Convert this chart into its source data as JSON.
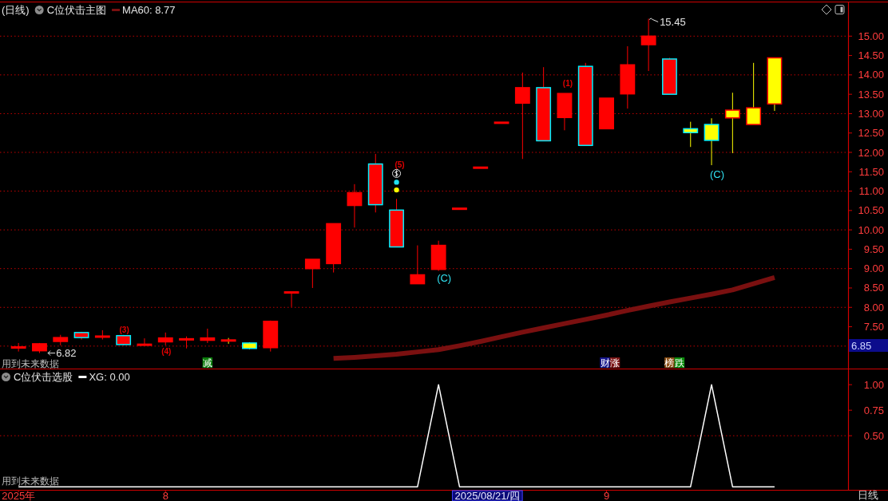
{
  "chart_data": [
    {
      "type": "candlestick",
      "subtitle": "(日线)",
      "title": "C位伏击主图",
      "categories": [
        null,
        null,
        null,
        null,
        null,
        null,
        null,
        null,
        null,
        null,
        null,
        null,
        null,
        null,
        null,
        null,
        null,
        null,
        null,
        null,
        null,
        null,
        null,
        null,
        null,
        null,
        null,
        null,
        null,
        null,
        null,
        null,
        null,
        null,
        null,
        null,
        null
      ],
      "ylim": [
        6.42,
        15.83
      ],
      "yticks": [
        {
          "value": 7,
          "label": null
        },
        {
          "value": 7.5,
          "label": "7.50"
        },
        {
          "value": 8,
          "label": "8.00"
        },
        {
          "value": 8.5,
          "label": "8.50"
        },
        {
          "value": 9,
          "label": "9.00"
        },
        {
          "value": 9.5,
          "label": "9.50"
        },
        {
          "value": 10,
          "label": "10.00"
        },
        {
          "value": 10.5,
          "label": "10.50"
        },
        {
          "value": 11,
          "label": "11.00"
        },
        {
          "value": 11.5,
          "label": "11.50"
        },
        {
          "value": 12,
          "label": "12.00"
        },
        {
          "value": 12.5,
          "label": "12.50"
        },
        {
          "value": 13,
          "label": "13.00"
        },
        {
          "value": 13.5,
          "label": "13.50"
        },
        {
          "value": 14,
          "label": "14.00"
        },
        {
          "value": 14.5,
          "label": "14.50"
        },
        {
          "value": 15,
          "label": "15.00"
        }
      ],
      "grid": "y",
      "tick_labels": "y",
      "legend": "top left",
      "ohlc": [
        [
          6.97,
          7.08,
          6.86,
          6.98
        ],
        [
          6.88,
          7.08,
          6.82,
          7.06
        ],
        [
          7.12,
          7.29,
          7.02,
          7.22
        ],
        [
          7.35,
          7.37,
          7.17,
          7.22
        ],
        [
          7.23,
          7.41,
          7.17,
          7.26
        ],
        [
          7.27,
          7.29,
          7.02,
          7.04
        ],
        [
          7.03,
          7.2,
          7.02,
          7.05
        ],
        [
          7.11,
          7.35,
          7.02,
          7.21
        ],
        [
          7.17,
          7.25,
          6.94,
          7.19
        ],
        [
          7.15,
          7.45,
          7.08,
          7.21
        ],
        [
          7.13,
          7.21,
          7.06,
          7.16
        ],
        [
          7.08,
          7.1,
          6.92,
          6.94
        ],
        [
          6.96,
          7.66,
          6.86,
          7.64
        ],
        [
          8.4,
          8.4,
          8.01,
          8.4
        ],
        [
          9.0,
          9.24,
          8.5,
          9.24
        ],
        [
          9.13,
          10.16,
          8.9,
          10.16
        ],
        [
          10.63,
          11.18,
          10.06,
          10.96
        ],
        [
          11.7,
          11.96,
          10.45,
          10.65
        ],
        [
          10.51,
          10.8,
          9.56,
          9.56
        ],
        [
          8.61,
          9.6,
          8.61,
          8.84
        ],
        [
          8.98,
          9.72,
          8.94,
          9.6
        ],
        [
          10.56,
          10.56,
          10.56,
          10.56
        ],
        [
          11.62,
          11.62,
          11.62,
          11.62
        ],
        [
          12.78,
          12.78,
          12.78,
          12.78
        ],
        [
          13.27,
          14.06,
          11.83,
          13.67
        ],
        [
          13.67,
          14.2,
          12.3,
          12.3
        ],
        [
          12.9,
          13.52,
          12.57,
          13.52
        ],
        [
          14.22,
          14.31,
          12.18,
          12.18
        ],
        [
          12.61,
          13.4,
          12.61,
          13.4
        ],
        [
          13.51,
          14.74,
          13.13,
          14.26
        ],
        [
          14.78,
          15.45,
          14.1,
          15.0
        ],
        [
          14.41,
          14.44,
          13.5,
          13.5
        ],
        [
          12.61,
          12.79,
          12.14,
          12.51
        ],
        [
          12.72,
          12.88,
          11.67,
          12.31
        ],
        [
          12.89,
          13.54,
          11.98,
          13.09
        ],
        [
          12.72,
          14.31,
          12.72,
          13.15
        ],
        [
          13.25,
          14.44,
          13.07,
          14.44
        ]
      ],
      "colors": [
        "#ff0000",
        "#ff0000",
        "#ff0000",
        "#ff0000",
        "#ff0000",
        "#ff0000",
        "#ff0000",
        "#ff0000",
        "#ff0000",
        "#ff0000",
        "#ffff00",
        "#ffff00",
        "#ff0000",
        "#ff0000",
        "#ff0000",
        "#ff0000",
        "#ff0000",
        "#ff0000",
        "#ff0000",
        "#ff0000",
        "#ff0000",
        "#ff0000",
        "#ff0000",
        "#ff0000",
        "#ff0000",
        "#ff0000",
        "#ff0000",
        "#ff0000",
        "#ff0000",
        "#ff0000",
        "#ff0000",
        "#ff0000",
        "#ffff00",
        "#ffff00",
        "#ffff00",
        "#ffff00",
        "#ffff00"
      ],
      "series": [
        {
          "type": "line",
          "name": "MA60: 8.77",
          "color": "#7a1010",
          "values": [
            null,
            null,
            null,
            null,
            null,
            null,
            null,
            null,
            null,
            null,
            null,
            null,
            null,
            null,
            null,
            6.68,
            6.71,
            6.75,
            6.79,
            6.85,
            6.91,
            7.01,
            7.12,
            7.24,
            7.36,
            7.47,
            7.58,
            7.69,
            7.8,
            7.92,
            8.03,
            8.14,
            8.24,
            8.34,
            8.45,
            8.61,
            8.77
          ]
        },
        {
          "type": "scatter",
          "color": "#20e0f0",
          "marker": "circle",
          "values": [
            null,
            null,
            null,
            null,
            null,
            null,
            null,
            null,
            null,
            null,
            null,
            null,
            null,
            null,
            null,
            null,
            null,
            null,
            11.23,
            null,
            null,
            null,
            null,
            null,
            null,
            null,
            null,
            null,
            null,
            null,
            null,
            null,
            null,
            null,
            null,
            null,
            null
          ]
        },
        {
          "type": "scatter",
          "color": "#ffff00",
          "marker": "circle",
          "values": [
            null,
            null,
            null,
            null,
            null,
            null,
            null,
            null,
            null,
            null,
            null,
            null,
            null,
            null,
            null,
            null,
            null,
            null,
            11.03,
            null,
            null,
            null,
            null,
            null,
            null,
            null,
            null,
            null,
            null,
            null,
            null,
            null,
            null,
            null,
            null,
            null,
            null
          ]
        }
      ],
      "annotations": [
        "用到未来数据",
        "6.85",
        "15.45",
        "6.82",
        "(C)",
        "(C)",
        "(3)",
        "(4)",
        "(5)",
        "(1)",
        "减",
        "财",
        "涨",
        "榜",
        "跌"
      ]
    },
    {
      "type": "line",
      "title": "C位伏击选股",
      "categories": [
        "2025年",
        null,
        null,
        null,
        null,
        null,
        null,
        "8",
        null,
        null,
        null,
        null,
        null,
        null,
        null,
        null,
        null,
        null,
        null,
        null,
        null,
        null,
        null,
        null,
        null,
        null,
        null,
        null,
        "9",
        null,
        null,
        null,
        null,
        null,
        null,
        null,
        null
      ],
      "ylim": [
        -0.03,
        1.15
      ],
      "yticks": [
        {
          "value": 0.5,
          "label": "0.50"
        },
        {
          "value": 0.75,
          "label": "0.75"
        },
        {
          "value": 1,
          "label": "1.00"
        }
      ],
      "ref_lines": [
        {
          "axis": "y",
          "value": 0.5,
          "color": "#c00000",
          "line_style": "dotted"
        }
      ],
      "legend": "top left",
      "series": [
        {
          "name": "XG: 0.00",
          "color": "#ffffff",
          "values": [
            0,
            0,
            0,
            0,
            0,
            0,
            0,
            0,
            0,
            0,
            0,
            0,
            0,
            0,
            0,
            0,
            0,
            0,
            0,
            0,
            1,
            0,
            0,
            0,
            0,
            0,
            0,
            0,
            0,
            0,
            0,
            0,
            0,
            1,
            0,
            0,
            0
          ]
        }
      ],
      "annotations": [
        "用到未来数据",
        "日线",
        "2025/08/21/四"
      ]
    }
  ]
}
